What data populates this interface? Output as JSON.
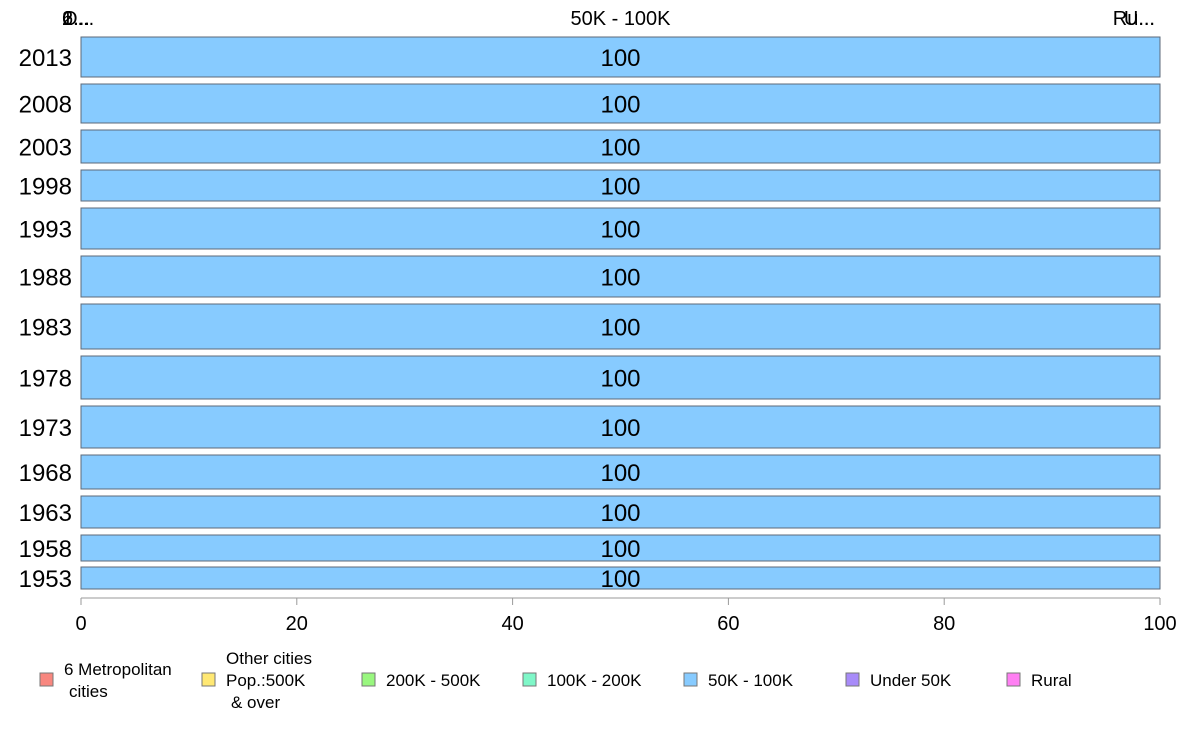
{
  "chart_data": {
    "type": "bar",
    "orientation": "horizontal",
    "stacked": true,
    "categories": [
      "2013",
      "2008",
      "2003",
      "1998",
      "1993",
      "1988",
      "1983",
      "1978",
      "1973",
      "1968",
      "1963",
      "1958",
      "1953"
    ],
    "series": [
      {
        "name": "6 Metropolitan\n cities",
        "color": "#f8877f",
        "values": [
          0,
          0,
          0,
          0,
          0,
          0,
          0,
          0,
          0,
          0,
          0,
          0,
          0
        ]
      },
      {
        "name": "Other cities\nPop.:500K\n & over",
        "color": "#ffe873",
        "values": [
          0,
          0,
          0,
          0,
          0,
          0,
          0,
          0,
          0,
          0,
          0,
          0,
          0
        ]
      },
      {
        "name": "200K - 500K",
        "color": "#99f77f",
        "values": [
          0,
          0,
          0,
          0,
          0,
          0,
          0,
          0,
          0,
          0,
          0,
          0,
          0
        ]
      },
      {
        "name": "100K - 200K",
        "color": "#7ff7c8",
        "values": [
          0,
          0,
          0,
          0,
          0,
          0,
          0,
          0,
          0,
          0,
          0,
          0,
          0
        ]
      },
      {
        "name": "50K - 100K",
        "color": "#87cbff",
        "values": [
          100,
          100,
          100,
          100,
          100,
          100,
          100,
          100,
          100,
          100,
          100,
          100,
          100
        ]
      },
      {
        "name": "Under 50K",
        "color": "#a88bf9",
        "values": [
          0,
          0,
          0,
          0,
          0,
          0,
          0,
          0,
          0,
          0,
          0,
          0,
          0
        ]
      },
      {
        "name": "Rural",
        "color": "#ff7ff3",
        "values": [
          0,
          0,
          0,
          0,
          0,
          0,
          0,
          0,
          0,
          0,
          0,
          0,
          0
        ]
      }
    ],
    "data_labels": [
      "100",
      "100",
      "100",
      "100",
      "100",
      "100",
      "100",
      "100",
      "100",
      "100",
      "100",
      "100",
      "100"
    ],
    "top_labels": [
      "6...",
      "O...",
      "2...",
      "1...",
      "50K - 100K",
      "U...",
      "Ru..."
    ],
    "xlim": [
      0,
      100
    ],
    "xticks": [
      "0",
      "20",
      "40",
      "60",
      "80",
      "100"
    ],
    "legend_position": "bottom",
    "grid": false
  }
}
